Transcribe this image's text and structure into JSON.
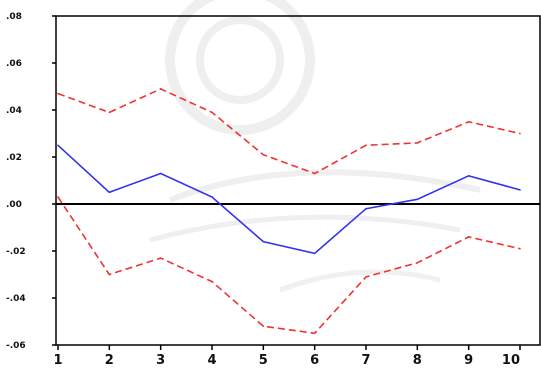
{
  "chart_data": {
    "type": "line",
    "title": "",
    "xlabel": "",
    "ylabel": "",
    "x": [
      1,
      2,
      3,
      4,
      5,
      6,
      7,
      8,
      9,
      10
    ],
    "x_tick_labels": [
      "1",
      "2",
      "3",
      "4",
      "5",
      "6",
      "7",
      "8",
      "9",
      "10"
    ],
    "y_tick_labels": [
      ".08",
      ".06",
      ".04",
      ".02",
      ".00",
      "-.02",
      "-.04",
      "-.06"
    ],
    "ylim": [
      -0.06,
      0.08
    ],
    "zero_line": 0,
    "series": [
      {
        "color": "#3333ee",
        "style": "solid",
        "values": [
          0.025,
          0.005,
          0.013,
          0.003,
          -0.016,
          -0.021,
          -0.002,
          0.002,
          0.012,
          0.006
        ]
      },
      {
        "color": "#ee3333",
        "style": "dashed",
        "values": [
          0.047,
          0.039,
          0.049,
          0.039,
          0.021,
          0.013,
          0.025,
          0.026,
          0.035,
          0.03
        ]
      },
      {
        "color": "#ee3333",
        "style": "dashed",
        "values": [
          0.003,
          -0.03,
          -0.023,
          -0.033,
          -0.052,
          -0.055,
          -0.031,
          -0.025,
          -0.014,
          -0.019
        ]
      }
    ]
  }
}
